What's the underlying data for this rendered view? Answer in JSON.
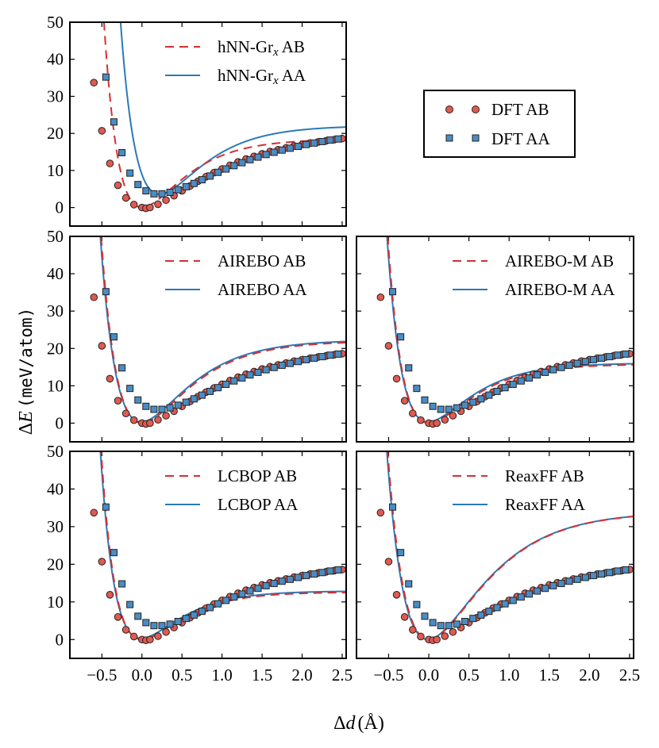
{
  "figure": {
    "ylabel_delta": "Δ",
    "ylabel_var": "E",
    "ylabel_unit": "(meV/atom)",
    "xlabel_delta": "Δ",
    "xlabel_var": "d",
    "xlabel_unit": "(Å)"
  },
  "colors": {
    "ab": "#d62f2f",
    "aa": "#2a7ab8",
    "dft_ab_fill": "#e05a50",
    "dft_aa_fill": "#4a8cc4",
    "marker_edge": "#222222"
  },
  "dft_legend": {
    "ab": "DFT AB",
    "aa": "DFT AA"
  },
  "chart_data": [
    {
      "id": "hnn",
      "type": "line",
      "xlim": [
        -0.9,
        2.55
      ],
      "ylim": [
        -5,
        50
      ],
      "xticks": [
        -0.5,
        0.0,
        0.5,
        1.0,
        1.5,
        2.0,
        2.5
      ],
      "yticks": [
        0,
        10,
        20,
        30,
        40,
        50
      ],
      "show_xticklabels": false,
      "show_yticklabels": true,
      "legend": {
        "ab_prefix": "hNN-Gr",
        "ab_sub": "x",
        "ab_suffix": " AB",
        "aa_prefix": "hNN-Gr",
        "aa_sub": "x",
        "aa_suffix": " AA"
      },
      "curves": {
        "ab": {
          "D": 18.5,
          "a": 2.05,
          "x0": 0.0,
          "k": 0.5,
          "offset": 0.0
        },
        "aa": {
          "D": 18.5,
          "a": 1.95,
          "x0": 0.22,
          "k": 0.5,
          "offset": 3.6
        }
      }
    },
    {
      "id": "airebo",
      "type": "line",
      "xlim": [
        -0.9,
        2.55
      ],
      "ylim": [
        -5,
        50
      ],
      "xticks": [
        -0.5,
        0.0,
        0.5,
        1.0,
        1.5,
        2.0,
        2.5
      ],
      "yticks": [
        0,
        10,
        20,
        30,
        40,
        50
      ],
      "show_xticklabels": false,
      "show_yticklabels": true,
      "legend": {
        "ab": "AIREBO AB",
        "aa": "AIREBO AA"
      },
      "curves": {
        "ab": {
          "D": 22.0,
          "a": 1.8,
          "x0": 0.0,
          "k": 0.6,
          "offset": 0.0
        },
        "aa": {
          "D": 22.0,
          "a": 1.8,
          "x0": -0.01,
          "k": 0.6,
          "offset": 0.3
        }
      }
    },
    {
      "id": "airebom",
      "type": "line",
      "xlim": [
        -0.9,
        2.55
      ],
      "ylim": [
        -5,
        50
      ],
      "xticks": [
        -0.5,
        0.0,
        0.5,
        1.0,
        1.5,
        2.0,
        2.5
      ],
      "yticks": [
        0,
        10,
        20,
        30,
        40,
        50
      ],
      "show_xticklabels": false,
      "show_yticklabels": false,
      "legend": {
        "ab": "AIREBO-M AB",
        "aa": "AIREBO-M AA"
      },
      "curves": {
        "ab": {
          "D": 15.8,
          "a": 2.0,
          "x0": 0.0,
          "k": 0.6,
          "offset": 0.0
        },
        "aa": {
          "D": 15.8,
          "a": 2.0,
          "x0": -0.01,
          "k": 0.6,
          "offset": 0.3
        }
      }
    },
    {
      "id": "lcbop",
      "type": "line",
      "xlim": [
        -0.9,
        2.55
      ],
      "ylim": [
        -5,
        50
      ],
      "xticks": [
        -0.5,
        0.0,
        0.5,
        1.0,
        1.5,
        2.0,
        2.5
      ],
      "yticks": [
        0,
        10,
        20,
        30,
        40,
        50
      ],
      "show_xticklabels": true,
      "show_yticklabels": true,
      "legend": {
        "ab": "LCBOP AB",
        "aa": "LCBOP AA"
      },
      "curves": {
        "ab": {
          "D": 12.6,
          "a": 2.15,
          "x0": 0.0,
          "k": 0.4,
          "offset": 0.0
        },
        "aa": {
          "D": 12.6,
          "a": 2.15,
          "x0": -0.01,
          "k": 0.4,
          "offset": 0.3
        }
      }
    },
    {
      "id": "reaxff",
      "type": "line",
      "xlim": [
        -0.9,
        2.55
      ],
      "ylim": [
        -5,
        50
      ],
      "xticks": [
        -0.5,
        0.0,
        0.5,
        1.0,
        1.5,
        2.0,
        2.5
      ],
      "yticks": [
        0,
        10,
        20,
        30,
        40,
        50
      ],
      "show_xticklabels": true,
      "show_yticklabels": false,
      "legend": {
        "ab": "ReaxFF AB",
        "aa": "ReaxFF AA"
      },
      "curves": {
        "ab": {
          "D": 34.0,
          "a": 1.55,
          "x0": 0.0,
          "k": 0.6,
          "offset": 0.0
        },
        "aa": {
          "D": 34.0,
          "a": 1.55,
          "x0": -0.01,
          "k": 0.6,
          "offset": 0.0
        }
      }
    }
  ],
  "dft_points": {
    "ab": {
      "x": [
        -0.6,
        -0.5,
        -0.4,
        -0.3,
        -0.2,
        -0.1,
        0.0,
        0.05,
        0.1,
        0.2,
        0.3,
        0.4,
        0.5,
        0.6,
        0.7,
        0.8,
        0.9,
        1.0,
        1.1,
        1.2,
        1.3,
        1.4,
        1.5,
        1.6,
        1.7,
        1.8,
        1.9,
        2.0,
        2.1,
        2.2,
        2.3,
        2.4,
        2.5
      ],
      "y": [
        33.7,
        20.7,
        11.9,
        6.0,
        2.6,
        0.8,
        0.0,
        -0.2,
        0.0,
        0.9,
        2.0,
        3.2,
        4.5,
        5.8,
        7.1,
        8.3,
        9.4,
        10.4,
        11.4,
        12.3,
        13.1,
        13.8,
        14.5,
        15.1,
        15.6,
        16.1,
        16.6,
        17.0,
        17.4,
        17.7,
        18.0,
        18.3,
        18.6
      ]
    },
    "aa": {
      "x": [
        -0.45,
        -0.35,
        -0.25,
        -0.15,
        -0.05,
        0.05,
        0.15,
        0.25,
        0.35,
        0.45,
        0.55,
        0.65,
        0.75,
        0.85,
        0.95,
        1.05,
        1.15,
        1.25,
        1.35,
        1.45,
        1.55,
        1.65,
        1.75,
        1.85,
        1.95,
        2.05,
        2.15,
        2.25,
        2.35,
        2.45
      ],
      "y": [
        35.2,
        23.1,
        14.8,
        9.3,
        6.2,
        4.5,
        3.7,
        3.7,
        4.1,
        4.8,
        5.6,
        6.5,
        7.5,
        8.5,
        9.5,
        10.4,
        11.3,
        12.1,
        12.9,
        13.6,
        14.3,
        14.9,
        15.5,
        16.0,
        16.5,
        17.0,
        17.4,
        17.8,
        18.2,
        18.5
      ]
    }
  }
}
